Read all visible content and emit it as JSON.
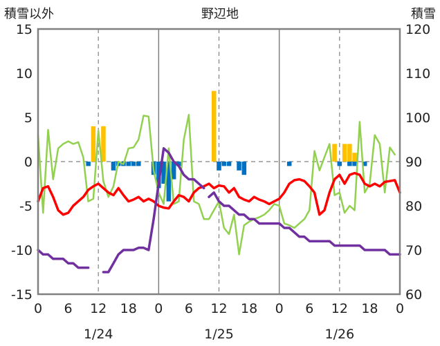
{
  "chart_data": {
    "type": "line",
    "title": "野辺地",
    "left_axis_label": "積雪以外",
    "right_axis_label": "積雪",
    "left_ylim": [
      -15,
      15
    ],
    "left_ticks": [
      15,
      10,
      5,
      0,
      -5,
      -10,
      -15
    ],
    "right_ylim": [
      60,
      120
    ],
    "right_ticks": [
      120,
      110,
      100,
      90,
      80,
      70,
      60
    ],
    "x_range_hours": [
      0,
      72
    ],
    "x_tick_labels": [
      "0",
      "12",
      "18",
      "0",
      "6",
      "12",
      "18",
      "0",
      "6",
      "12",
      "18",
      "0"
    ],
    "x_tick_hours": [
      0,
      12,
      18,
      24,
      30,
      36,
      42,
      48,
      54,
      60,
      66,
      72
    ],
    "x_tick_label_6_first": "6",
    "date_labels": [
      {
        "text": "1/24",
        "hour": 12
      },
      {
        "text": "1/25",
        "hour": 36
      },
      {
        "text": "1/26",
        "hour": 60
      }
    ],
    "day_boundaries_hours": [
      24,
      48
    ],
    "dashed_grid_hours": [
      12,
      36,
      60
    ],
    "grid_dashed_y0": true,
    "colors": {
      "snowfall": "#FFC000",
      "snow_decrease": "#0070C0",
      "temperature": "#FF0000",
      "wind": "#92D050",
      "snow_depth": "#7030A0"
    },
    "series": [
      {
        "key": "snowfall",
        "type": "bar",
        "axis": "left",
        "points": [
          [
            11,
            4
          ],
          [
            13,
            4
          ],
          [
            35,
            8
          ],
          [
            59,
            2
          ],
          [
            61,
            2
          ],
          [
            62,
            2
          ],
          [
            63,
            1
          ]
        ]
      },
      {
        "key": "snow_decrease",
        "type": "bar",
        "axis": "left",
        "points": [
          [
            10,
            -0.5
          ],
          [
            15,
            -1
          ],
          [
            16,
            -0.5
          ],
          [
            17,
            -0.5
          ],
          [
            18,
            -0.5
          ],
          [
            19,
            -0.5
          ],
          [
            20,
            -0.5
          ],
          [
            23,
            -1.5
          ],
          [
            24,
            -3
          ],
          [
            25,
            -2.5
          ],
          [
            26,
            -4.5
          ],
          [
            27,
            -2
          ],
          [
            28,
            -0.5
          ],
          [
            36,
            -1
          ],
          [
            37,
            -0.5
          ],
          [
            38,
            -0.5
          ],
          [
            40,
            -1
          ],
          [
            41,
            -1.5
          ],
          [
            50,
            -0.5
          ],
          [
            60,
            -0.5
          ],
          [
            62,
            -0.5
          ],
          [
            63,
            -0.5
          ],
          [
            65,
            -0.5
          ]
        ]
      },
      {
        "key": "temperature",
        "type": "line",
        "axis": "left",
        "segments": [
          [
            [
              0,
              -4.5
            ],
            [
              1,
              -3.0
            ],
            [
              2,
              -2.8
            ],
            [
              3,
              -4.0
            ],
            [
              4,
              -5.5
            ],
            [
              5,
              -6.0
            ],
            [
              6,
              -5.8
            ],
            [
              7,
              -5.0
            ],
            [
              8,
              -4.5
            ],
            [
              9,
              -4.0
            ],
            [
              10,
              -3.2
            ],
            [
              11,
              -2.8
            ],
            [
              12,
              -2.5
            ],
            [
              13,
              -3.0
            ],
            [
              14,
              -3.5
            ],
            [
              15,
              -3.8
            ],
            [
              16,
              -3.0
            ],
            [
              17,
              -3.8
            ],
            [
              18,
              -4.5
            ],
            [
              19,
              -4.3
            ],
            [
              20,
              -4.0
            ],
            [
              21,
              -4.5
            ],
            [
              22,
              -4.2
            ],
            [
              23,
              -4.5
            ],
            [
              24,
              -5.0
            ],
            [
              25,
              -5.2
            ],
            [
              26,
              -5.3
            ],
            [
              27,
              -4.5
            ],
            [
              28,
              -3.8
            ],
            [
              29,
              -4.0
            ],
            [
              30,
              -4.5
            ],
            [
              31,
              -3.5
            ],
            [
              32,
              -3.0
            ],
            [
              33,
              -2.8
            ],
            [
              34,
              -2.5
            ],
            [
              35,
              -3.0
            ],
            [
              36,
              -2.7
            ],
            [
              37,
              -2.8
            ],
            [
              38,
              -3.5
            ],
            [
              39,
              -3.0
            ],
            [
              40,
              -4.0
            ],
            [
              41,
              -4.3
            ],
            [
              42,
              -4.5
            ],
            [
              43,
              -4.0
            ],
            [
              44,
              -4.3
            ],
            [
              45,
              -4.5
            ],
            [
              46,
              -4.8
            ],
            [
              47,
              -4.5
            ],
            [
              48,
              -4.2
            ],
            [
              49,
              -3.5
            ],
            [
              50,
              -2.5
            ],
            [
              51,
              -2.1
            ],
            [
              52,
              -2.0
            ],
            [
              53,
              -2.2
            ],
            [
              54,
              -2.8
            ],
            [
              55,
              -3.5
            ],
            [
              56,
              -6.0
            ],
            [
              57,
              -5.5
            ],
            [
              58,
              -3.5
            ],
            [
              59,
              -2.0
            ],
            [
              60,
              -1.5
            ],
            [
              61,
              -2.5
            ],
            [
              62,
              -1.5
            ],
            [
              63,
              -1.3
            ],
            [
              64,
              -1.5
            ],
            [
              65,
              -2.5
            ],
            [
              66,
              -2.8
            ],
            [
              67,
              -2.5
            ],
            [
              68,
              -2.8
            ],
            [
              69,
              -2.3
            ],
            [
              70,
              -2.2
            ],
            [
              71,
              -2.1
            ],
            [
              72,
              -3.5
            ]
          ]
        ]
      },
      {
        "key": "wind",
        "type": "line",
        "axis": "left",
        "segments": [
          [
            [
              0,
              3.0
            ],
            [
              1,
              -5.8
            ],
            [
              2,
              3.6
            ],
            [
              3,
              -2.0
            ],
            [
              4,
              1.5
            ],
            [
              5,
              2.0
            ],
            [
              6,
              2.3
            ],
            [
              7,
              2.0
            ],
            [
              8,
              2.2
            ],
            [
              9,
              0.5
            ],
            [
              10,
              -4.5
            ],
            [
              11,
              -4.2
            ],
            [
              12,
              3.5
            ],
            [
              13,
              -2.2
            ],
            [
              14,
              -4.0
            ],
            [
              15,
              -2.8
            ],
            [
              16,
              0.0
            ],
            [
              17,
              -0.3
            ],
            [
              18,
              1.5
            ],
            [
              19,
              1.6
            ],
            [
              20,
              2.5
            ],
            [
              21,
              5.2
            ],
            [
              22,
              5.1
            ],
            [
              23,
              -1.0
            ],
            [
              24,
              -3.5
            ],
            [
              25,
              -4.8
            ],
            [
              26,
              1.5
            ],
            [
              27,
              -4.8
            ],
            [
              28,
              -4.5
            ],
            [
              29,
              2.5
            ],
            [
              30,
              5.3
            ],
            [
              31,
              -4.5
            ],
            [
              32,
              -4.8
            ],
            [
              33,
              -6.5
            ],
            [
              34,
              -6.5
            ],
            [
              35,
              -5.5
            ],
            [
              36,
              -4.5
            ],
            [
              37,
              -7.5
            ],
            [
              38,
              -8.2
            ],
            [
              39,
              -6.0
            ],
            [
              40,
              -10.5
            ],
            [
              41,
              -7.2
            ],
            [
              42,
              -6.8
            ],
            [
              43,
              -6.5
            ],
            [
              44,
              -6.3
            ],
            [
              45,
              -6.0
            ],
            [
              46,
              -5.5
            ],
            [
              47,
              -4.8
            ],
            [
              48,
              -5.0
            ],
            [
              49,
              -7.0
            ],
            [
              50,
              -7.2
            ],
            [
              51,
              -7.5
            ],
            [
              52,
              -7.0
            ],
            [
              53,
              -6.5
            ],
            [
              54,
              -5.5
            ],
            [
              55,
              1.2
            ],
            [
              56,
              -1.0
            ],
            [
              57,
              0.5
            ],
            [
              58,
              2.0
            ],
            [
              59,
              -3.8
            ],
            [
              60,
              -3.5
            ],
            [
              61,
              -5.8
            ],
            [
              62,
              -5.0
            ],
            [
              63,
              -5.5
            ],
            [
              64,
              4.5
            ],
            [
              65,
              -3.5
            ],
            [
              66,
              -2.5
            ],
            [
              67,
              3.0
            ],
            [
              68,
              2.0
            ],
            [
              69,
              -3.5
            ],
            [
              70,
              1.6
            ],
            [
              71,
              0.8
            ]
          ]
        ]
      },
      {
        "key": "snow_depth",
        "type": "line",
        "axis": "right",
        "segments": [
          [
            [
              0,
              70
            ],
            [
              1,
              69
            ],
            [
              2,
              69
            ],
            [
              3,
              68
            ],
            [
              4,
              68
            ],
            [
              5,
              68
            ],
            [
              6,
              67
            ],
            [
              7,
              67
            ],
            [
              8,
              66
            ],
            [
              9,
              66
            ],
            [
              10,
              66
            ]
          ],
          [
            [
              13,
              65
            ],
            [
              14,
              65
            ],
            [
              15,
              67
            ],
            [
              16,
              69
            ],
            [
              17,
              70
            ],
            [
              18,
              70
            ],
            [
              19,
              70
            ],
            [
              20,
              70.5
            ],
            [
              21,
              70.5
            ],
            [
              22,
              70
            ],
            [
              23,
              77
            ],
            [
              24,
              85
            ],
            [
              25,
              93
            ],
            [
              26,
              92
            ],
            [
              27,
              90
            ],
            [
              28,
              89
            ],
            [
              29,
              87
            ],
            [
              30,
              86
            ],
            [
              31,
              86
            ],
            [
              32,
              85
            ],
            [
              33,
              84
            ]
          ],
          [
            [
              34,
              82
            ],
            [
              35,
              83
            ],
            [
              36,
              81
            ],
            [
              37,
              80
            ],
            [
              38,
              80
            ],
            [
              39,
              79
            ],
            [
              40,
              78
            ],
            [
              41,
              78
            ],
            [
              42,
              77
            ],
            [
              43,
              77
            ],
            [
              44,
              76
            ],
            [
              45,
              76
            ],
            [
              46,
              76
            ],
            [
              47,
              76
            ],
            [
              48,
              76
            ],
            [
              49,
              75
            ],
            [
              50,
              75
            ],
            [
              51,
              74
            ],
            [
              52,
              73
            ],
            [
              53,
              73
            ],
            [
              54,
              72
            ],
            [
              55,
              72
            ],
            [
              56,
              72
            ],
            [
              57,
              72
            ],
            [
              58,
              72
            ],
            [
              59,
              71
            ],
            [
              60,
              71
            ],
            [
              61,
              71
            ],
            [
              62,
              71
            ],
            [
              63,
              71
            ],
            [
              64,
              71
            ],
            [
              65,
              70
            ],
            [
              66,
              70
            ],
            [
              67,
              70
            ],
            [
              68,
              70
            ],
            [
              69,
              70
            ],
            [
              70,
              69
            ],
            [
              71,
              69
            ],
            [
              72,
              69
            ]
          ]
        ]
      }
    ]
  }
}
